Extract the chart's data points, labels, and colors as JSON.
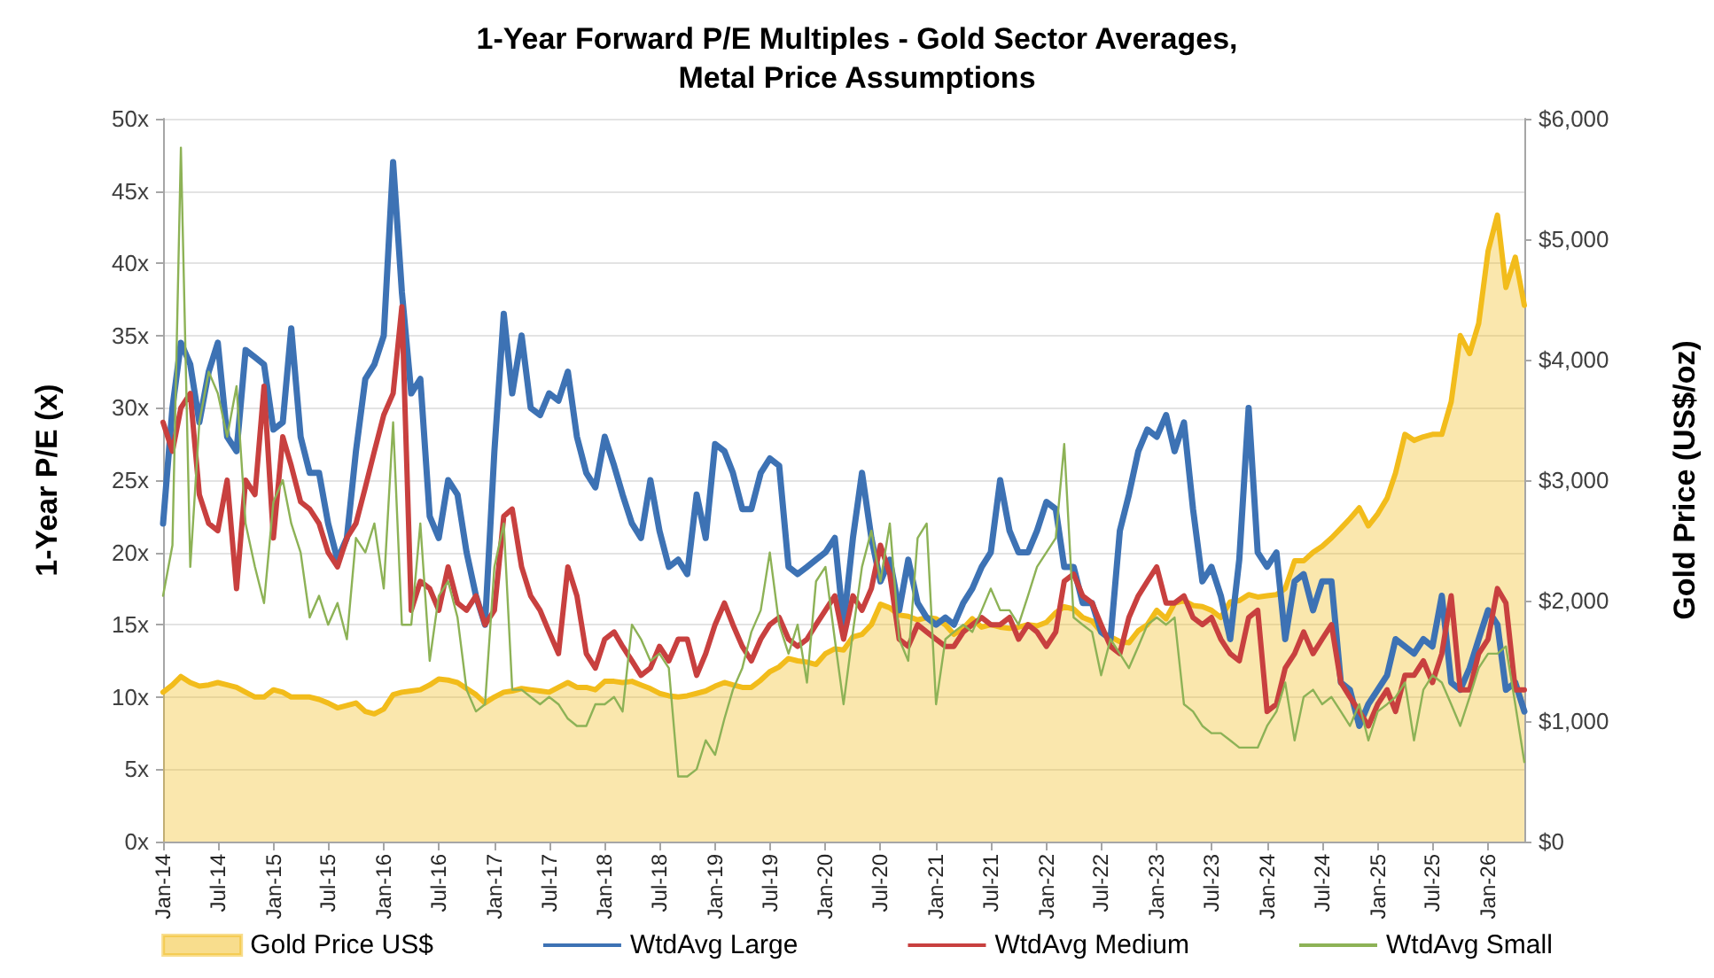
{
  "chart_data": {
    "type": "line",
    "title": "1-Year Forward P/E Multiples - Gold Sector Averages,\nMetal Price Assumptions",
    "ylabel": "1-Year P/E (x)",
    "y2label": "Gold Price (US$/oz)",
    "x": [
      "2014-01",
      "2014-02",
      "2014-03",
      "2014-04",
      "2014-05",
      "2014-06",
      "2014-07",
      "2014-08",
      "2014-09",
      "2014-10",
      "2014-11",
      "2014-12",
      "2015-01",
      "2015-02",
      "2015-03",
      "2015-04",
      "2015-05",
      "2015-06",
      "2015-07",
      "2015-08",
      "2015-09",
      "2015-10",
      "2015-11",
      "2015-12",
      "2016-01",
      "2016-02",
      "2016-03",
      "2016-04",
      "2016-05",
      "2016-06",
      "2016-07",
      "2016-08",
      "2016-09",
      "2016-10",
      "2016-11",
      "2016-12",
      "2017-01",
      "2017-02",
      "2017-03",
      "2017-04",
      "2017-05",
      "2017-06",
      "2017-07",
      "2017-08",
      "2017-09",
      "2017-10",
      "2017-11",
      "2017-12",
      "2018-01",
      "2018-02",
      "2018-03",
      "2018-04",
      "2018-05",
      "2018-06",
      "2018-07",
      "2018-08",
      "2018-09",
      "2018-10",
      "2018-11",
      "2018-12",
      "2019-01",
      "2019-02",
      "2019-03",
      "2019-04",
      "2019-05",
      "2019-06",
      "2019-07",
      "2019-08",
      "2019-09",
      "2019-10",
      "2019-11",
      "2019-12",
      "2020-01",
      "2020-02",
      "2020-03",
      "2020-04",
      "2020-05",
      "2020-06",
      "2020-07",
      "2020-08",
      "2020-09",
      "2020-10",
      "2020-11",
      "2020-12",
      "2021-01",
      "2021-02",
      "2021-03",
      "2021-04",
      "2021-05",
      "2021-06",
      "2021-07",
      "2021-08",
      "2021-09",
      "2021-10",
      "2021-11",
      "2021-12",
      "2022-01",
      "2022-02",
      "2022-03",
      "2022-04",
      "2022-05",
      "2022-06",
      "2022-07",
      "2022-08",
      "2022-09",
      "2022-10",
      "2022-11",
      "2022-12",
      "2023-01",
      "2023-02",
      "2023-03",
      "2023-04",
      "2023-05",
      "2023-06",
      "2023-07",
      "2023-08",
      "2023-09",
      "2023-10",
      "2023-11",
      "2023-12",
      "2024-01",
      "2024-02",
      "2024-03",
      "2024-04",
      "2024-05",
      "2024-06",
      "2024-07",
      "2024-08",
      "2024-09",
      "2024-10",
      "2024-11",
      "2024-12",
      "2025-01",
      "2025-02",
      "2025-03",
      "2025-04",
      "2025-05",
      "2025-06",
      "2025-07",
      "2025-08",
      "2025-09",
      "2025-10",
      "2025-11",
      "2025-12",
      "2026-01",
      "2026-02",
      "2026-03",
      "2026-04",
      "2026-05"
    ],
    "xlim": [
      "2014-01",
      "2026-05"
    ],
    "xticks": [
      {
        "value": "2014-01",
        "label": "Jan-14"
      },
      {
        "value": "2014-07",
        "label": "Jul-14"
      },
      {
        "value": "2015-01",
        "label": "Jan-15"
      },
      {
        "value": "2015-07",
        "label": "Jul-15"
      },
      {
        "value": "2016-01",
        "label": "Jan-16"
      },
      {
        "value": "2016-07",
        "label": "Jul-16"
      },
      {
        "value": "2017-01",
        "label": "Jan-17"
      },
      {
        "value": "2017-07",
        "label": "Jul-17"
      },
      {
        "value": "2018-01",
        "label": "Jan-18"
      },
      {
        "value": "2018-07",
        "label": "Jul-18"
      },
      {
        "value": "2019-01",
        "label": "Jan-19"
      },
      {
        "value": "2019-07",
        "label": "Jul-19"
      },
      {
        "value": "2020-01",
        "label": "Jan-20"
      },
      {
        "value": "2020-07",
        "label": "Jul-20"
      },
      {
        "value": "2021-01",
        "label": "Jan-21"
      },
      {
        "value": "2021-07",
        "label": "Jul-21"
      },
      {
        "value": "2022-01",
        "label": "Jan-22"
      },
      {
        "value": "2022-07",
        "label": "Jul-22"
      },
      {
        "value": "2023-01",
        "label": "Jan-23"
      },
      {
        "value": "2023-07",
        "label": "Jul-23"
      },
      {
        "value": "2024-01",
        "label": "Jan-24"
      },
      {
        "value": "2024-07",
        "label": "Jul-24"
      },
      {
        "value": "2025-01",
        "label": "Jan-25"
      },
      {
        "value": "2025-07",
        "label": "Jul-25"
      },
      {
        "value": "2026-01",
        "label": "Jan-26"
      }
    ],
    "ylim": [
      0,
      50
    ],
    "yticks": [
      {
        "value": 0,
        "label": "0x"
      },
      {
        "value": 5,
        "label": "5x"
      },
      {
        "value": 10,
        "label": "10x"
      },
      {
        "value": 15,
        "label": "15x"
      },
      {
        "value": 20,
        "label": "20x"
      },
      {
        "value": 25,
        "label": "25x"
      },
      {
        "value": 30,
        "label": "30x"
      },
      {
        "value": 35,
        "label": "35x"
      },
      {
        "value": 40,
        "label": "40x"
      },
      {
        "value": 45,
        "label": "45x"
      },
      {
        "value": 50,
        "label": "50x"
      }
    ],
    "y2lim": [
      0,
      6000
    ],
    "y2ticks": [
      {
        "value": 0,
        "label": "$0"
      },
      {
        "value": 1000,
        "label": "$1,000"
      },
      {
        "value": 2000,
        "label": "$2,000"
      },
      {
        "value": 3000,
        "label": "$3,000"
      },
      {
        "value": 4000,
        "label": "$4,000"
      },
      {
        "value": 5000,
        "label": "$5,000"
      },
      {
        "value": 6000,
        "label": "$6,000"
      }
    ],
    "grid": "y",
    "legend": "bottom",
    "marker": "none",
    "series": [
      {
        "name": "Gold Price US$",
        "type": "area",
        "axis": "y2",
        "color": "#f2bc1b",
        "values": [
          1240,
          1300,
          1370,
          1320,
          1290,
          1300,
          1320,
          1300,
          1280,
          1240,
          1200,
          1200,
          1260,
          1240,
          1200,
          1200,
          1200,
          1180,
          1150,
          1110,
          1130,
          1150,
          1080,
          1060,
          1100,
          1220,
          1240,
          1250,
          1260,
          1300,
          1350,
          1340,
          1320,
          1270,
          1220,
          1150,
          1200,
          1240,
          1250,
          1270,
          1260,
          1250,
          1240,
          1280,
          1320,
          1280,
          1280,
          1260,
          1330,
          1330,
          1320,
          1330,
          1300,
          1270,
          1230,
          1210,
          1200,
          1210,
          1230,
          1250,
          1290,
          1320,
          1300,
          1280,
          1280,
          1340,
          1410,
          1450,
          1520,
          1500,
          1490,
          1470,
          1560,
          1600,
          1590,
          1700,
          1720,
          1800,
          1970,
          1940,
          1880,
          1870,
          1840,
          1860,
          1850,
          1800,
          1720,
          1770,
          1850,
          1780,
          1800,
          1780,
          1770,
          1780,
          1800,
          1790,
          1820,
          1900,
          1950,
          1930,
          1860,
          1830,
          1740,
          1700,
          1660,
          1650,
          1750,
          1800,
          1920,
          1850,
          1980,
          2000,
          1960,
          1950,
          1920,
          1860,
          1990,
          2000,
          2050,
          2030,
          2040,
          2050,
          2100,
          2330,
          2330,
          2400,
          2450,
          2520,
          2600,
          2680,
          2770,
          2620,
          2720,
          2850,
          3060,
          3380,
          3330,
          3360,
          3380,
          3380,
          3650,
          4200,
          4050,
          4300,
          4900,
          5200,
          4600,
          4850,
          4450
        ]
      },
      {
        "name": "WtdAvg Large",
        "color": "#3d72b4",
        "values": [
          22,
          30,
          34.5,
          33,
          29,
          32.5,
          34.5,
          28,
          27,
          34,
          33.5,
          33,
          28.5,
          29,
          35.5,
          28,
          25.5,
          25.5,
          22,
          19.5,
          21,
          27,
          32,
          33,
          35,
          47,
          38,
          31,
          32,
          22.5,
          21,
          25,
          24,
          20,
          17,
          15,
          27,
          36.5,
          31,
          35,
          30,
          29.5,
          31,
          30.5,
          32.5,
          28,
          25.5,
          24.5,
          28,
          26,
          24,
          22,
          21,
          25,
          21.5,
          19,
          19.5,
          18.5,
          24,
          21,
          27.5,
          27,
          25.5,
          23,
          23,
          25.5,
          26.5,
          26,
          19,
          18.5,
          19,
          19.5,
          20,
          21,
          15,
          21,
          25.5,
          21,
          18,
          19.5,
          16,
          19.5,
          16.5,
          15.5,
          15,
          15.5,
          15,
          16.5,
          17.5,
          19,
          20,
          25,
          21.5,
          20,
          20,
          21.5,
          23.5,
          23,
          19,
          19,
          16.5,
          16.5,
          14.5,
          14,
          21.5,
          24,
          27,
          28.5,
          28,
          29.5,
          27,
          29,
          23,
          18,
          19,
          17,
          14,
          19.5,
          30,
          20,
          19,
          20,
          14,
          18,
          18.5,
          16,
          18,
          18,
          11,
          10.5,
          8,
          9.5,
          10.5,
          11.5,
          14,
          13.5,
          13,
          14,
          13.5,
          17,
          11,
          10.5,
          12,
          14,
          16,
          15,
          10.5,
          11,
          9
        ]
      },
      {
        "name": "WtdAvg Medium",
        "color": "#c8403f",
        "values": [
          29,
          27,
          30,
          31,
          24,
          22,
          21.5,
          25,
          17.5,
          25,
          24,
          31.5,
          21,
          28,
          26,
          23.5,
          23,
          22,
          20,
          19,
          21,
          22,
          24.5,
          27,
          29.5,
          31,
          37,
          16,
          18,
          17.5,
          16,
          19,
          16.5,
          16,
          17,
          15,
          16,
          22.5,
          23,
          19,
          17,
          16,
          14.5,
          13,
          19,
          17,
          13,
          12,
          14,
          14.5,
          13.5,
          12.5,
          11.5,
          12,
          13.5,
          12.5,
          14,
          14,
          11.5,
          13,
          15,
          16.5,
          15,
          13.5,
          12.5,
          14,
          15,
          15.5,
          14,
          13.5,
          14,
          15,
          16,
          17,
          14,
          17,
          16,
          17.5,
          20.5,
          18.5,
          14,
          13.5,
          15,
          14.5,
          14,
          13.5,
          13.5,
          14.5,
          15,
          15.5,
          15,
          15,
          15.5,
          14,
          15,
          14.5,
          13.5,
          14.5,
          18,
          18.5,
          17,
          16.5,
          15,
          13.5,
          13,
          15.5,
          17,
          18,
          19,
          16.5,
          16.5,
          17,
          15.5,
          15,
          15.5,
          14,
          13,
          12.5,
          15.5,
          16,
          9,
          9.5,
          12,
          13,
          14.5,
          13,
          14,
          15,
          11,
          10,
          9,
          8,
          9.5,
          10.5,
          9,
          11.5,
          11.5,
          12.5,
          11,
          13,
          17,
          10.5,
          10.5,
          13,
          14,
          17.5,
          16.5,
          10.5,
          10.5
        ]
      },
      {
        "name": "WtdAvg Small",
        "color": "#8db256",
        "values": [
          17,
          20.5,
          48,
          19,
          29,
          32.5,
          31,
          28,
          31.5,
          22,
          19,
          16.5,
          23.5,
          25,
          22,
          20,
          15.5,
          17,
          15,
          16.5,
          14,
          21,
          20,
          22,
          17.5,
          29,
          15,
          15,
          22,
          12.5,
          17,
          18,
          15.5,
          10.5,
          9,
          9.5,
          19,
          22,
          10.5,
          10.5,
          10,
          9.5,
          10,
          9.5,
          8.5,
          8,
          8,
          9.5,
          9.5,
          10,
          9,
          15,
          14,
          12.5,
          13,
          12,
          4.5,
          4.5,
          5,
          7,
          6,
          8.5,
          10.5,
          12,
          14.5,
          16,
          20,
          15,
          13,
          15,
          11,
          18,
          19,
          14,
          9.5,
          14.5,
          19,
          21.5,
          18,
          22,
          14,
          12.5,
          21,
          22,
          9.5,
          14,
          14.5,
          15,
          14.5,
          16,
          17.5,
          16,
          16,
          15,
          17,
          19,
          20,
          21,
          27.5,
          15.5,
          15,
          14.5,
          11.5,
          14,
          13,
          12,
          13.5,
          15,
          15.5,
          15,
          15.5,
          9.5,
          9,
          8,
          7.5,
          7.5,
          7,
          6.5,
          6.5,
          6.5,
          8,
          9,
          11,
          7,
          10,
          10.5,
          9.5,
          10,
          9,
          8,
          9.5,
          7,
          9,
          9.5,
          10,
          11,
          7,
          10.5,
          11.5,
          11,
          9.5,
          8,
          10,
          12,
          13,
          13,
          13.5,
          9.5,
          5.5
        ]
      }
    ]
  }
}
